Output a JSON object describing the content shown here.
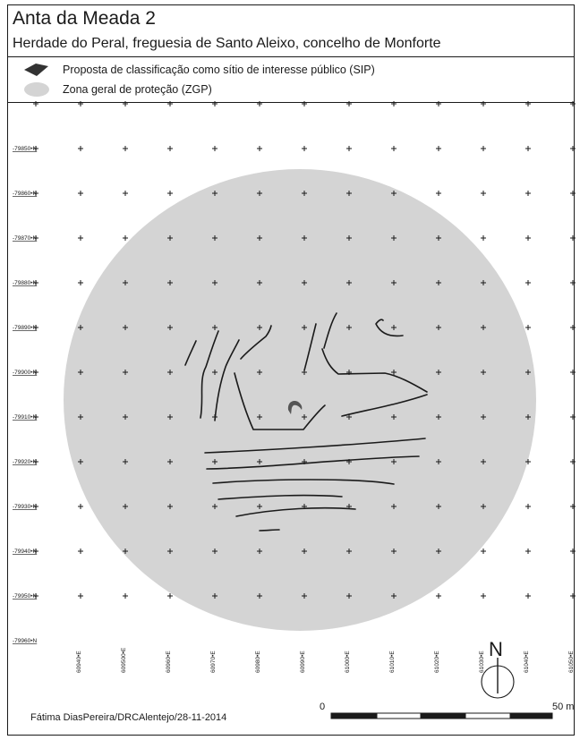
{
  "title": "Anta da Meada 2",
  "subtitle": "Herdade do Peral, freguesia de Santo Aleixo, concelho de Monforte",
  "legend": {
    "items": [
      {
        "label": "Proposta de classificação como sítio de interesse público (SIP)",
        "color": "#333333",
        "icon": "diamond-icon"
      },
      {
        "label": "Zona geral de proteção (ZGP)",
        "color": "#d4d4d4",
        "icon": "circle-swatch-icon"
      }
    ]
  },
  "map": {
    "northing_labels": [
      "-79850•N",
      "-79860•N",
      "-79870•N",
      "-79880•N",
      "-79890•N",
      "-79900•N",
      "-79910•N",
      "-79920•N",
      "-79930•N",
      "-79940•N",
      "-79950•N",
      "-79960•N"
    ],
    "easting_labels": [
      "60940•E",
      "609500•E",
      "60960•E",
      "60970•E",
      "60980•E",
      "60990•E",
      "61000•E",
      "61010•E",
      "61020•E",
      "61030•E",
      "61040•E",
      "61050•E"
    ],
    "zgp_color": "#d4d4d4",
    "sip_color": "#555555",
    "contour_color": "#1a1a1a",
    "north_label": "N"
  },
  "scale_bar": {
    "start_label": "0",
    "end_label": "50 m"
  },
  "credit": "Fátima DiasPereira/DRCAlentejo/28-11-2014"
}
